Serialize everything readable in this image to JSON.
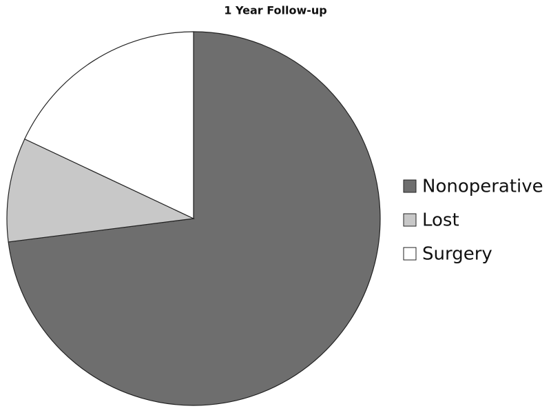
{
  "chart_data": {
    "type": "pie",
    "title": "1 Year Follow-up",
    "categories": [
      "Nonoperative",
      "Lost",
      "Surgery"
    ],
    "values": [
      73,
      9,
      18
    ],
    "colors": [
      "#6e6e6e",
      "#c8c8c8",
      "#ffffff"
    ]
  }
}
